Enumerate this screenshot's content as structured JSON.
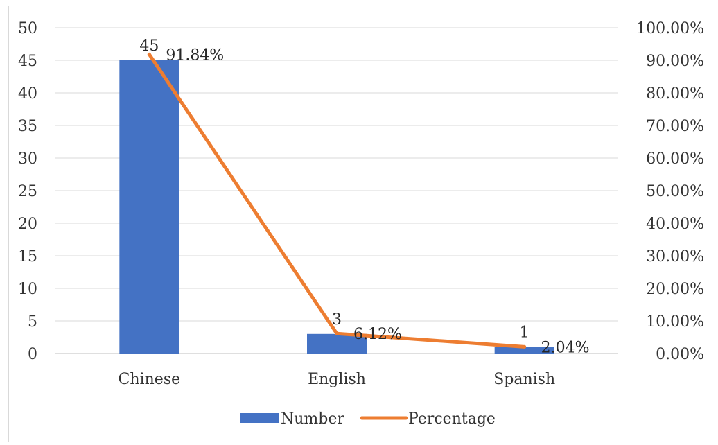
{
  "chart_data": {
    "type": "bar",
    "title": "",
    "xlabel": "",
    "ylabel": "",
    "categories": [
      "Chinese",
      "English",
      "Spanish"
    ],
    "series": [
      {
        "name": "Number",
        "type": "bar",
        "axis": "left",
        "color": "#4472C4",
        "values": [
          45,
          3,
          1
        ],
        "labels": [
          "45",
          "3",
          "1"
        ]
      },
      {
        "name": "Percentage",
        "type": "line",
        "axis": "right",
        "color": "#ED7D31",
        "values": [
          91.84,
          6.12,
          2.04
        ],
        "labels": [
          "91.84%",
          "6.12%",
          "2.04%"
        ]
      }
    ],
    "ylim": [
      0,
      50
    ],
    "y_ticks": [
      "0",
      "5",
      "10",
      "15",
      "20",
      "25",
      "30",
      "35",
      "40",
      "45",
      "50"
    ],
    "y2lim": [
      0,
      100
    ],
    "y2_ticks": [
      "0.00%",
      "10.00%",
      "20.00%",
      "30.00%",
      "40.00%",
      "50.00%",
      "60.00%",
      "70.00%",
      "80.00%",
      "90.00%",
      "100.00%"
    ],
    "grid": true,
    "legend": "bottom"
  }
}
